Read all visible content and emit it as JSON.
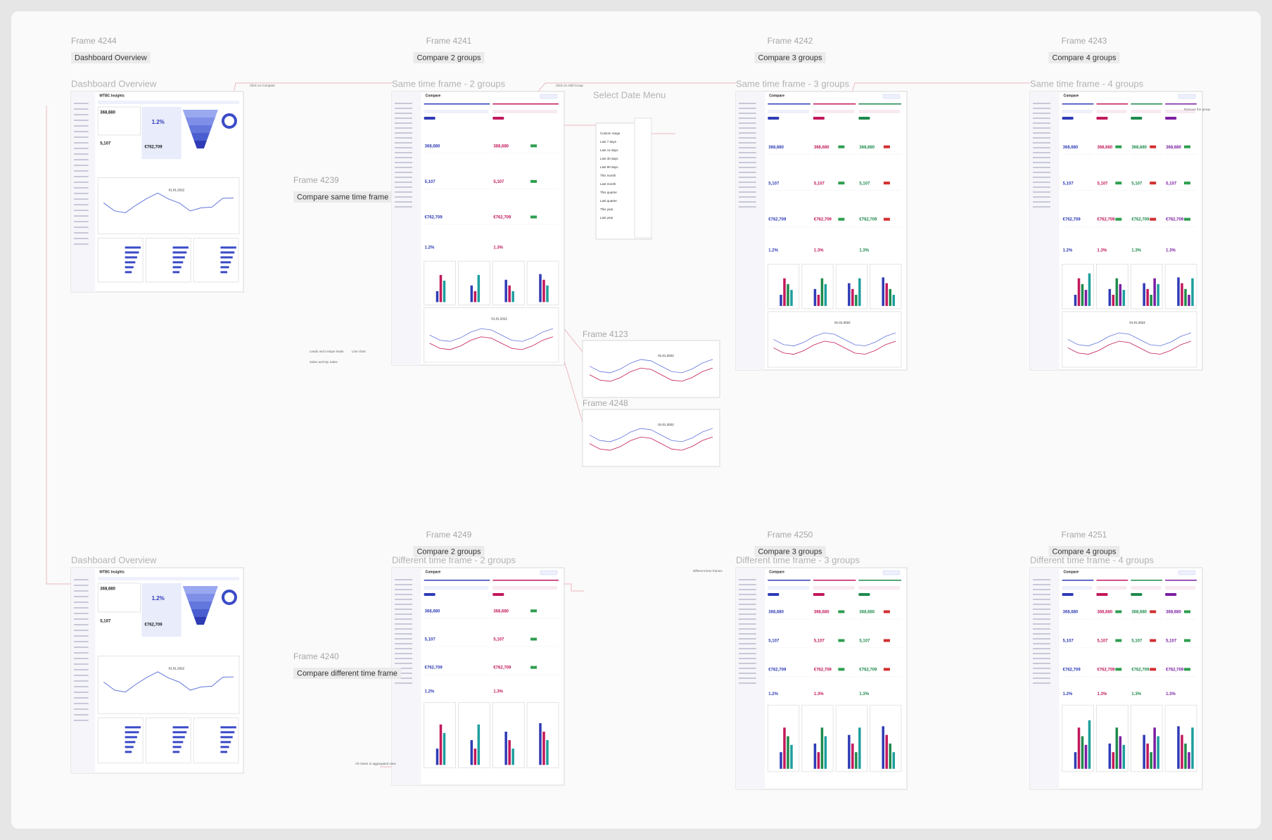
{
  "frames": [
    {
      "name": "Frame 4244",
      "caption": "Dashboard Overview",
      "heading": "Dashboard Overview"
    },
    {
      "name": "Frame 4241",
      "caption": "Compare 2 groups",
      "heading": "Same time frame - 2 groups"
    },
    {
      "name": "Frame 4242",
      "caption": "Compare 3 groups",
      "heading": "Same time frame - 3 groups"
    },
    {
      "name": "Frame 4243",
      "caption": "Compare 4 groups",
      "heading": "Same time frame - 4 groups"
    },
    {
      "name": "Frame 4239",
      "caption": "Compare same time frame"
    },
    {
      "name": "Frame 4123"
    },
    {
      "name": "Frame 4248"
    },
    {
      "heading": "Dashboard Overview"
    },
    {
      "name": "Frame 4249",
      "caption": "Compare 2 groups",
      "heading": "Different time frame - 2 groups"
    },
    {
      "name": "Frame 4240",
      "caption": "Compare different time frame"
    },
    {
      "name": "Frame 4250",
      "caption": "Compare 3 groups",
      "heading": "Different time frame - 3 groups"
    },
    {
      "name": "Frame 4251",
      "caption": "Compare 4 groups",
      "heading": "Different time frame - 4 groups"
    }
  ],
  "date_menu": {
    "title": "Select Date Menu",
    "items": [
      "Custom range",
      "Last 7 days",
      "Last 14 days",
      "Last 30 days",
      "Last 90 days",
      "This month",
      "Last month",
      "This quarter",
      "Last quarter",
      "This year",
      "Last year"
    ]
  },
  "mock": {
    "dashboard_title": "WTBC Insights",
    "compare_title": "Compare",
    "leads": "368,680",
    "sales": "5,107",
    "revenue": "€762,709",
    "rate_a": "1.2%",
    "rate_b": "1.3%",
    "line_date": "01.01.2022"
  },
  "notes": [
    "Click on Compare",
    "Click on Add Group",
    "Remove the group",
    "Leads and Unique leads",
    "Sales and My Sales",
    "Line chart",
    "Different time frames",
    "All charts in aggregated view"
  ]
}
